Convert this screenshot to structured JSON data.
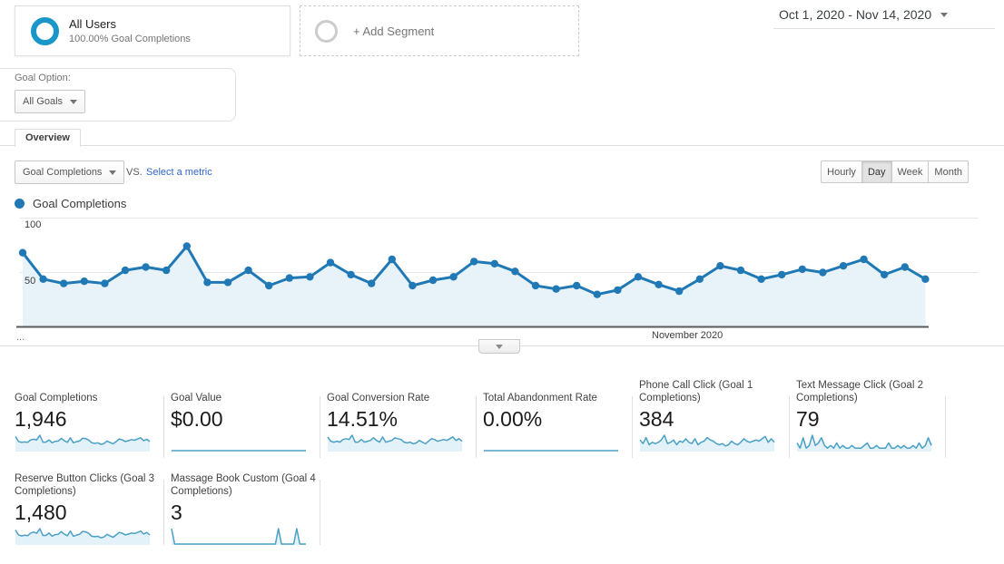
{
  "header": {
    "segment_name": "All Users",
    "segment_detail": "100.00% Goal Completions",
    "add_segment_label": "+ Add Segment",
    "date_range": "Oct 1, 2020 - Nov 14, 2020"
  },
  "goal_option": {
    "label": "Goal Option:",
    "selected": "All Goals"
  },
  "tabs": {
    "overview": "Overview"
  },
  "controls": {
    "metric_selected": "Goal Completions",
    "vs_label": "VS.",
    "compare_link": "Select a metric",
    "granularity": [
      "Hourly",
      "Day",
      "Week",
      "Month"
    ],
    "granularity_selected": "Day"
  },
  "legend_label": "Goal Completions",
  "colors": {
    "accent_blue": "#2079b5",
    "chart_fill": "#e8f2f9",
    "baseline_gray": "#5a5a5a",
    "grid_gray": "#e6e6e6",
    "spark_line": "#4aa0c6",
    "spark_fill": "#e3f1f8",
    "link_blue": "#3366cc",
    "segment_ring": "#1a96c8"
  },
  "chart_data": {
    "type": "line",
    "title": "Goal Completions",
    "granularity": "Day",
    "x_start": "Oct 1, 2020",
    "x_end": "Nov 14, 2020",
    "x_tick_labels": [
      "...",
      "November 2020"
    ],
    "ylim": [
      0,
      100
    ],
    "y_tick_labels": [
      "50",
      "100"
    ],
    "grid": true,
    "legend_position": "top-left",
    "series": [
      {
        "name": "Goal Completions",
        "values": [
          68,
          44,
          40,
          42,
          40,
          52,
          55,
          52,
          74,
          41,
          41,
          52,
          38,
          45,
          46,
          59,
          48,
          40,
          62,
          38,
          43,
          46,
          60,
          58,
          51,
          38,
          35,
          38,
          30,
          34,
          46,
          39,
          33,
          44,
          56,
          52,
          44,
          48,
          53,
          50,
          56,
          62,
          48,
          55,
          44
        ]
      }
    ]
  },
  "cards": [
    {
      "title": "Goal Completions",
      "value": "1,946",
      "spark": [
        68,
        44,
        40,
        42,
        40,
        52,
        55,
        52,
        74,
        41,
        41,
        52,
        38,
        45,
        46,
        59,
        48,
        40,
        62,
        38,
        43,
        46,
        60,
        58,
        51,
        38,
        35,
        38,
        30,
        34,
        46,
        39,
        33,
        44,
        56,
        52,
        44,
        48,
        53,
        50,
        56,
        62,
        48,
        55,
        44
      ]
    },
    {
      "title": "Goal Value",
      "value": "$0.00",
      "spark": [
        0,
        0
      ]
    },
    {
      "title": "Goal Conversion Rate",
      "value": "14.51%",
      "spark": [
        16,
        11,
        10,
        11,
        10,
        13,
        14,
        13,
        18,
        10,
        10,
        13,
        10,
        11,
        12,
        15,
        12,
        10,
        16,
        10,
        11,
        12,
        15,
        14,
        13,
        10,
        9,
        10,
        8,
        9,
        12,
        10,
        8,
        11,
        14,
        13,
        11,
        12,
        13,
        12,
        14,
        16,
        12,
        14,
        11
      ]
    },
    {
      "title": "Total Abandonment Rate",
      "value": "0.00%",
      "spark": [
        0,
        0
      ]
    },
    {
      "title": "Phone Call Click (Goal 1 Completions)",
      "value": "384",
      "spark": [
        9,
        6,
        11,
        5,
        7,
        6,
        7,
        9,
        13,
        6,
        7,
        9,
        5,
        8,
        7,
        10,
        7,
        6,
        10,
        5,
        7,
        8,
        11,
        9,
        8,
        6,
        5,
        6,
        4,
        5,
        8,
        6,
        5,
        7,
        10,
        8,
        7,
        8,
        9,
        8,
        10,
        12,
        7,
        10,
        7
      ]
    },
    {
      "title": "Text Message Click (Goal 2 Completions)",
      "value": "79",
      "spark": [
        3,
        1,
        5,
        1,
        2,
        6,
        2,
        3,
        5,
        2,
        1,
        2,
        1,
        3,
        1,
        2,
        1,
        1,
        2,
        1,
        1,
        1,
        2,
        3,
        1,
        1,
        2,
        1,
        1,
        1,
        3,
        1,
        1,
        2,
        1,
        2,
        1,
        1,
        2,
        1,
        3,
        1,
        2,
        5,
        2
      ]
    },
    {
      "title": "Reserve Button Clicks (Goal 3 Completions)",
      "value": "1,480",
      "spark": [
        52,
        34,
        30,
        33,
        31,
        41,
        44,
        40,
        57,
        32,
        32,
        41,
        29,
        35,
        36,
        46,
        37,
        31,
        48,
        29,
        33,
        36,
        47,
        45,
        40,
        29,
        27,
        29,
        23,
        26,
        36,
        30,
        25,
        34,
        43,
        40,
        34,
        37,
        41,
        39,
        43,
        48,
        37,
        43,
        34
      ]
    },
    {
      "title": "Massage Book Custom (Goal 4 Completions)",
      "value": "3",
      "spark": [
        2,
        0,
        0,
        0,
        0,
        0,
        0,
        0,
        0,
        0,
        0,
        0,
        0,
        0,
        0,
        0,
        0,
        0,
        0,
        0,
        0,
        0,
        0,
        0,
        0,
        0,
        0,
        0,
        0,
        0,
        0,
        0,
        0,
        0,
        0,
        2,
        0,
        0,
        0,
        0,
        0,
        2,
        0,
        0,
        0
      ]
    }
  ]
}
